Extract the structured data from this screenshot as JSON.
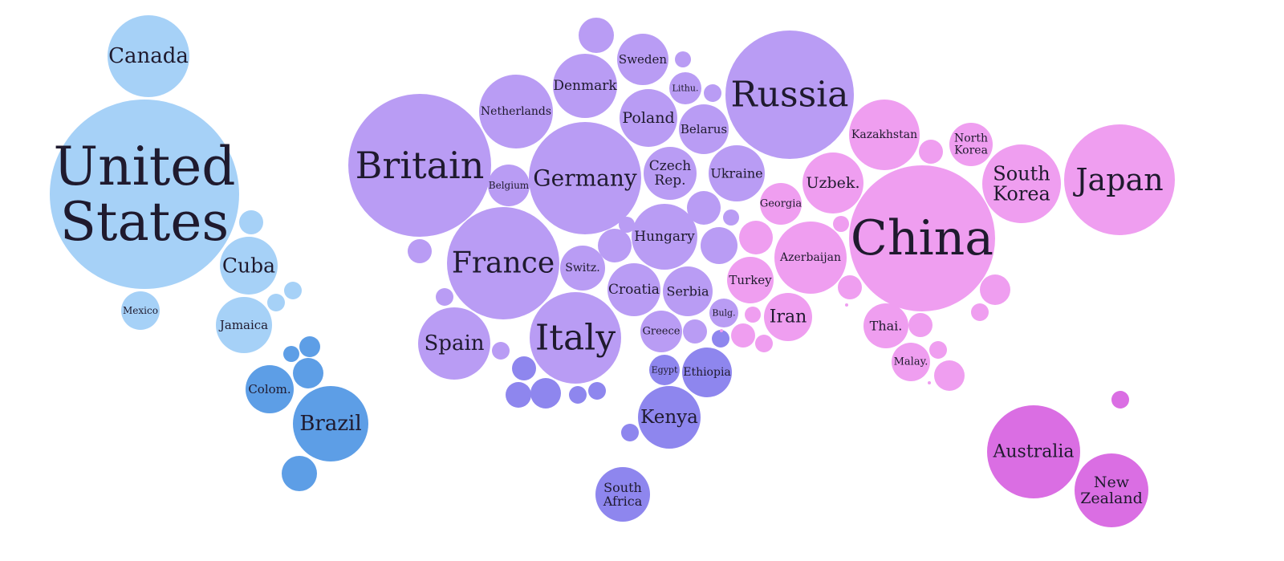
{
  "colors": {
    "north_america": "#a6d1f7",
    "caribbean": "#a6d1f7",
    "south_america": "#5d9ee6",
    "europe": "#b99cf4",
    "africa": "#8e86ee",
    "asia": "#ef9ef0",
    "oceania": "#da6ee3",
    "label": "#1f1a2e"
  },
  "countries": [
    {
      "id": "canada",
      "label": "Canada",
      "region": "north_america"
    },
    {
      "id": "united-states",
      "label": "United States",
      "lines": [
        "United",
        "States"
      ],
      "region": "north_america"
    },
    {
      "id": "cuba",
      "label": "Cuba",
      "region": "caribbean"
    },
    {
      "id": "mexico",
      "label": "Mexico",
      "region": "north_america"
    },
    {
      "id": "jamaica",
      "label": "Jamaica",
      "region": "caribbean"
    },
    {
      "id": "colombia",
      "label": "Colom.",
      "region": "south_america"
    },
    {
      "id": "brazil",
      "label": "Brazil",
      "region": "south_america"
    },
    {
      "id": "britain",
      "label": "Britain",
      "region": "europe"
    },
    {
      "id": "netherlands",
      "label": "Netherlands",
      "region": "europe"
    },
    {
      "id": "denmark",
      "label": "Denmark",
      "region": "europe"
    },
    {
      "id": "sweden",
      "label": "Sweden",
      "region": "europe"
    },
    {
      "id": "lithuania",
      "label": "Lithu.",
      "region": "europe"
    },
    {
      "id": "poland",
      "label": "Poland",
      "region": "europe"
    },
    {
      "id": "belarus",
      "label": "Belarus",
      "region": "europe"
    },
    {
      "id": "russia",
      "label": "Russia",
      "region": "europe"
    },
    {
      "id": "germany",
      "label": "Germany",
      "region": "europe"
    },
    {
      "id": "belgium",
      "label": "Belgium",
      "region": "europe"
    },
    {
      "id": "czech-republic",
      "label": "Czech Rep.",
      "lines": [
        "Czech",
        "Rep."
      ],
      "region": "europe"
    },
    {
      "id": "ukraine",
      "label": "Ukraine",
      "region": "europe"
    },
    {
      "id": "france",
      "label": "France",
      "region": "europe"
    },
    {
      "id": "switzerland",
      "label": "Switz.",
      "region": "europe"
    },
    {
      "id": "hungary",
      "label": "Hungary",
      "region": "europe"
    },
    {
      "id": "croatia",
      "label": "Croatia",
      "region": "europe"
    },
    {
      "id": "serbia",
      "label": "Serbia",
      "region": "europe"
    },
    {
      "id": "spain",
      "label": "Spain",
      "region": "europe"
    },
    {
      "id": "italy",
      "label": "Italy",
      "region": "europe"
    },
    {
      "id": "greece",
      "label": "Greece",
      "region": "europe"
    },
    {
      "id": "bulgaria",
      "label": "Bulg.",
      "region": "europe"
    },
    {
      "id": "egypt",
      "label": "Egypt",
      "region": "africa"
    },
    {
      "id": "ethiopia",
      "label": "Ethiopia",
      "region": "africa"
    },
    {
      "id": "kenya",
      "label": "Kenya",
      "region": "africa"
    },
    {
      "id": "south-africa",
      "label": "South Africa",
      "lines": [
        "South",
        "Africa"
      ],
      "region": "africa"
    },
    {
      "id": "kazakhstan",
      "label": "Kazakhstan",
      "region": "asia"
    },
    {
      "id": "north-korea",
      "label": "North Korea",
      "lines": [
        "North",
        "Korea"
      ],
      "region": "asia"
    },
    {
      "id": "south-korea",
      "label": "South Korea",
      "lines": [
        "South",
        "Korea"
      ],
      "region": "asia"
    },
    {
      "id": "japan",
      "label": "Japan",
      "region": "asia"
    },
    {
      "id": "uzbekistan",
      "label": "Uzbek.",
      "region": "asia"
    },
    {
      "id": "georgia",
      "label": "Georgia",
      "region": "asia"
    },
    {
      "id": "china",
      "label": "China",
      "region": "asia"
    },
    {
      "id": "azerbaijan",
      "label": "Azerbaijan",
      "region": "asia"
    },
    {
      "id": "turkey",
      "label": "Turkey",
      "region": "asia"
    },
    {
      "id": "iran",
      "label": "Iran",
      "region": "asia"
    },
    {
      "id": "thailand",
      "label": "Thai.",
      "region": "asia"
    },
    {
      "id": "malaysia",
      "label": "Malay.",
      "region": "asia"
    },
    {
      "id": "australia",
      "label": "Australia",
      "region": "oceania"
    },
    {
      "id": "new-zealand",
      "label": "New Zealand",
      "lines": [
        "New",
        "Zealand"
      ],
      "region": "oceania"
    }
  ],
  "unlabeled_bubbles": [
    {
      "id": "na-1",
      "region": "north_america"
    },
    {
      "id": "na-2",
      "region": "north_america"
    },
    {
      "id": "na-3",
      "region": "north_america"
    },
    {
      "id": "na-4",
      "region": "caribbean"
    },
    {
      "id": "sa-1",
      "region": "south_america"
    },
    {
      "id": "sa-2",
      "region": "south_america"
    },
    {
      "id": "sa-3",
      "region": "south_america"
    },
    {
      "id": "sa-4",
      "region": "south_america"
    },
    {
      "id": "sa-5",
      "region": "south_america"
    },
    {
      "id": "eu-1",
      "region": "europe"
    },
    {
      "id": "eu-2",
      "region": "europe"
    },
    {
      "id": "eu-3",
      "region": "europe"
    },
    {
      "id": "eu-4",
      "region": "europe"
    },
    {
      "id": "eu-5",
      "region": "europe"
    },
    {
      "id": "eu-6",
      "region": "europe"
    },
    {
      "id": "eu-7",
      "region": "europe"
    },
    {
      "id": "eu-8",
      "region": "europe"
    },
    {
      "id": "eu-9",
      "region": "europe"
    },
    {
      "id": "eu-10",
      "region": "europe"
    },
    {
      "id": "eu-11",
      "region": "europe"
    },
    {
      "id": "eu-12",
      "region": "europe"
    },
    {
      "id": "af-1",
      "region": "africa"
    },
    {
      "id": "af-2",
      "region": "africa"
    },
    {
      "id": "af-3",
      "region": "africa"
    },
    {
      "id": "af-4",
      "region": "africa"
    },
    {
      "id": "af-5",
      "region": "africa"
    },
    {
      "id": "af-6",
      "region": "africa"
    },
    {
      "id": "af-7",
      "region": "africa"
    },
    {
      "id": "as-1",
      "region": "asia"
    },
    {
      "id": "as-2",
      "region": "asia"
    },
    {
      "id": "as-3",
      "region": "asia"
    },
    {
      "id": "as-4",
      "region": "asia"
    },
    {
      "id": "as-5",
      "region": "asia"
    },
    {
      "id": "as-6",
      "region": "asia"
    },
    {
      "id": "as-7",
      "region": "asia"
    },
    {
      "id": "as-8",
      "region": "asia"
    },
    {
      "id": "as-9",
      "region": "asia"
    },
    {
      "id": "as-10",
      "region": "asia"
    },
    {
      "id": "as-11",
      "region": "asia"
    },
    {
      "id": "as-12",
      "region": "asia"
    },
    {
      "id": "as-13",
      "region": "asia"
    },
    {
      "id": "as-14",
      "region": "asia"
    },
    {
      "id": "as-15",
      "region": "asia"
    },
    {
      "id": "as-16",
      "region": "asia"
    },
    {
      "id": "as-17",
      "region": "asia"
    },
    {
      "id": "oc-1",
      "region": "oceania"
    }
  ]
}
